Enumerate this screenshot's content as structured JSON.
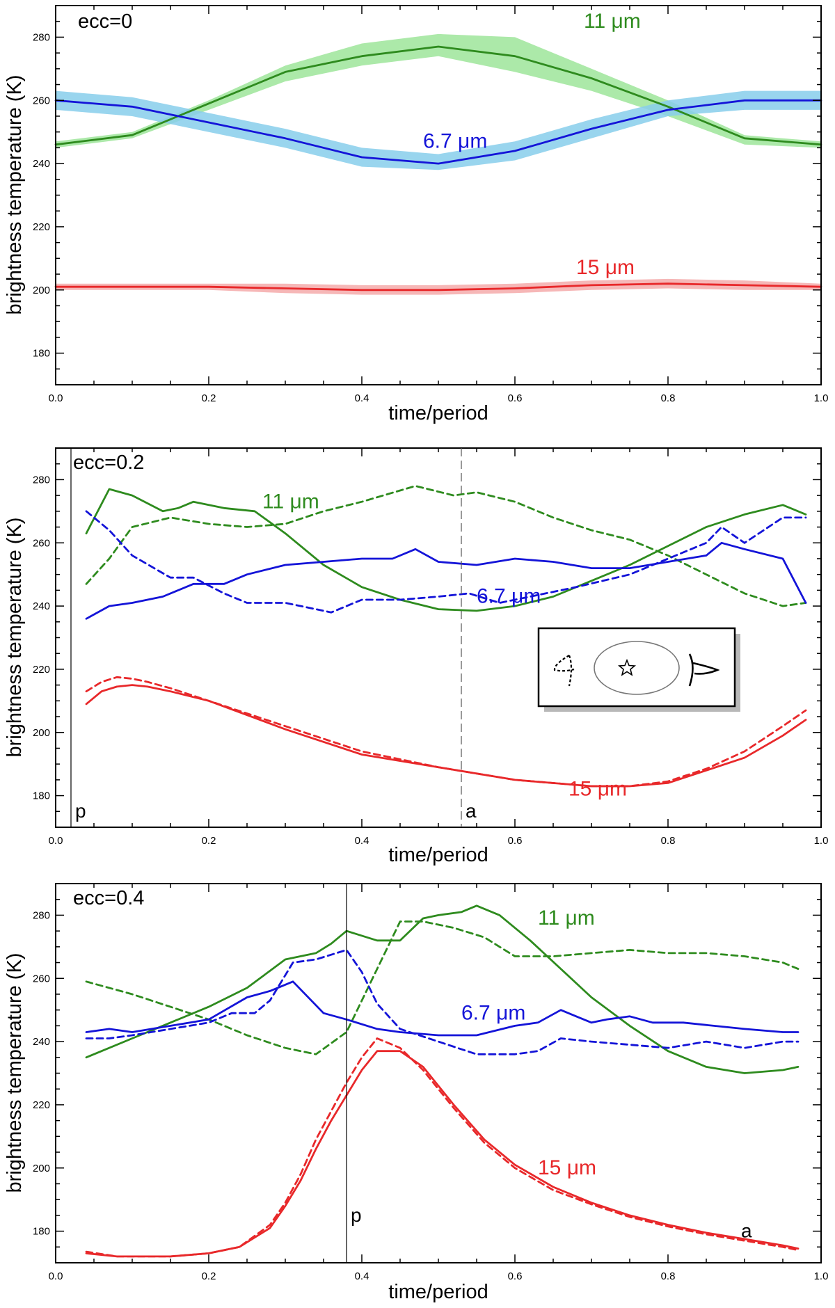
{
  "figure": {
    "xlabel": "time/period",
    "ylabel": "brightness temperature (K)",
    "micron_unit": "μm"
  },
  "colors": {
    "green": "#2e8b1e",
    "green_band": "#9ee59a",
    "blue": "#1414d8",
    "blue_band": "#87ceeb",
    "red": "#e8282a",
    "red_band": "#f5aaaa",
    "axis": "#000000",
    "marker_line_dashed": "#555555"
  },
  "chart_data": [
    {
      "type": "line",
      "title": "ecc=0",
      "xlabel": "time/period",
      "ylabel": "brightness temperature (K)",
      "xlim": [
        0.0,
        1.0
      ],
      "ylim": [
        170,
        290
      ],
      "xticks": [
        "0.0",
        "0.2",
        "0.4",
        "0.6",
        "0.8",
        "1.0"
      ],
      "yticks": [
        "180",
        "200",
        "220",
        "240",
        "260",
        "280"
      ],
      "series": [
        {
          "name": "11 μm",
          "label": "11",
          "color_key": "green",
          "style": "solid",
          "label_x": 0.69,
          "label_y": 283,
          "x": [
            0.0,
            0.1,
            0.2,
            0.3,
            0.4,
            0.5,
            0.6,
            0.7,
            0.8,
            0.9,
            1.0
          ],
          "values": [
            246,
            249,
            259,
            269,
            274,
            277,
            274,
            267,
            258,
            248,
            246
          ],
          "band_lower": [
            245,
            248,
            257,
            266,
            271,
            274,
            269,
            263,
            255,
            246,
            245
          ],
          "band_upper": [
            247,
            250,
            260,
            271,
            278,
            281,
            280,
            270,
            260,
            249,
            247
          ]
        },
        {
          "name": "6.7 μm",
          "label": "6.7",
          "color_key": "blue",
          "style": "solid",
          "label_x": 0.48,
          "label_y": 245,
          "x": [
            0.0,
            0.1,
            0.2,
            0.3,
            0.4,
            0.5,
            0.6,
            0.7,
            0.8,
            0.9,
            1.0
          ],
          "values": [
            260,
            258,
            253,
            248,
            242,
            240,
            244,
            251,
            257,
            260,
            260
          ],
          "band_lower": [
            257,
            255,
            250,
            245,
            239,
            238,
            241,
            248,
            255,
            257,
            257
          ],
          "band_upper": [
            263,
            261,
            256,
            251,
            245,
            243,
            247,
            254,
            260,
            263,
            263
          ]
        },
        {
          "name": "15 μm",
          "label": "15",
          "color_key": "red",
          "style": "solid",
          "label_x": 0.68,
          "label_y": 205,
          "x": [
            0.0,
            0.1,
            0.2,
            0.3,
            0.4,
            0.5,
            0.6,
            0.7,
            0.8,
            0.9,
            1.0
          ],
          "values": [
            201,
            201,
            201,
            200.5,
            200,
            200,
            200.5,
            201.5,
            202,
            201.5,
            201
          ],
          "band_lower": [
            200,
            200,
            200,
            199,
            198.5,
            198.5,
            199,
            200,
            200.5,
            200,
            200
          ],
          "band_upper": [
            202,
            202,
            202,
            202,
            201.5,
            201.5,
            202,
            203,
            203.5,
            203,
            202
          ]
        }
      ],
      "markers": []
    },
    {
      "type": "line",
      "title": "ecc=0.2",
      "xlabel": "time/period",
      "ylabel": "brightness temperature (K)",
      "xlim": [
        0.0,
        1.0
      ],
      "ylim": [
        170,
        290
      ],
      "xticks": [
        "0.0",
        "0.2",
        "0.4",
        "0.6",
        "0.8",
        "1.0"
      ],
      "yticks": [
        "180",
        "200",
        "220",
        "240",
        "260",
        "280"
      ],
      "series": [
        {
          "name": "11 μm",
          "label": "11",
          "color_key": "green",
          "style": "solid",
          "label_x": 0.27,
          "label_y": 271,
          "x": [
            0.04,
            0.07,
            0.1,
            0.14,
            0.16,
            0.18,
            0.2,
            0.22,
            0.26,
            0.3,
            0.35,
            0.4,
            0.45,
            0.5,
            0.55,
            0.6,
            0.65,
            0.7,
            0.75,
            0.8,
            0.85,
            0.9,
            0.95,
            0.98
          ],
          "values": [
            263,
            277,
            275,
            270,
            271,
            273,
            272,
            271,
            270,
            263,
            253,
            246,
            242,
            239,
            238.5,
            240,
            243,
            248,
            253,
            259,
            265,
            269,
            272,
            269
          ]
        },
        {
          "name": "11 μm (dashed)",
          "label": "",
          "color_key": "green",
          "style": "dashed",
          "x": [
            0.04,
            0.07,
            0.1,
            0.15,
            0.2,
            0.25,
            0.3,
            0.35,
            0.4,
            0.47,
            0.52,
            0.55,
            0.6,
            0.65,
            0.7,
            0.75,
            0.8,
            0.85,
            0.9,
            0.95,
            0.98
          ],
          "values": [
            247,
            255,
            265,
            268,
            266,
            265,
            266,
            270,
            273,
            278,
            275,
            276,
            273,
            268,
            264,
            261,
            256,
            250,
            244,
            240,
            241
          ]
        },
        {
          "name": "6.7 μm",
          "label": "6.7",
          "color_key": "blue",
          "style": "solid",
          "label_x": 0.55,
          "label_y": 241,
          "x": [
            0.04,
            0.07,
            0.1,
            0.14,
            0.18,
            0.22,
            0.25,
            0.3,
            0.35,
            0.4,
            0.44,
            0.47,
            0.5,
            0.55,
            0.6,
            0.65,
            0.7,
            0.75,
            0.8,
            0.85,
            0.87,
            0.9,
            0.95,
            0.98
          ],
          "values": [
            236,
            240,
            241,
            243,
            247,
            247,
            250,
            253,
            254,
            255,
            255,
            258,
            254,
            253,
            255,
            254,
            252,
            252,
            254,
            256,
            260,
            258,
            255,
            241
          ]
        },
        {
          "name": "6.7 μm (dashed)",
          "label": "",
          "color_key": "blue",
          "style": "dashed",
          "x": [
            0.04,
            0.07,
            0.1,
            0.15,
            0.18,
            0.22,
            0.25,
            0.3,
            0.36,
            0.4,
            0.45,
            0.5,
            0.54,
            0.58,
            0.62,
            0.68,
            0.75,
            0.8,
            0.85,
            0.87,
            0.9,
            0.95,
            0.98
          ],
          "values": [
            270,
            264,
            256,
            249,
            249,
            244,
            241,
            241,
            238,
            242,
            242,
            243,
            244,
            241,
            243,
            246,
            250,
            255,
            260,
            265,
            260,
            268,
            268
          ]
        },
        {
          "name": "15 μm",
          "label": "15",
          "color_key": "red",
          "style": "solid",
          "label_x": 0.67,
          "label_y": 180,
          "x": [
            0.04,
            0.06,
            0.08,
            0.1,
            0.12,
            0.15,
            0.2,
            0.3,
            0.4,
            0.5,
            0.6,
            0.7,
            0.75,
            0.8,
            0.85,
            0.9,
            0.95,
            0.98
          ],
          "values": [
            209,
            213,
            214.5,
            215,
            214.5,
            213,
            210,
            201,
            193,
            189,
            185,
            183,
            183,
            184,
            188,
            192,
            199,
            204
          ]
        },
        {
          "name": "15 μm (dashed)",
          "label": "",
          "color_key": "red",
          "style": "dashed",
          "x": [
            0.04,
            0.06,
            0.08,
            0.1,
            0.12,
            0.15,
            0.2,
            0.3,
            0.4,
            0.5,
            0.6,
            0.7,
            0.75,
            0.8,
            0.85,
            0.9,
            0.95,
            0.98
          ],
          "values": [
            213,
            216,
            217.5,
            217,
            216,
            214,
            210,
            202,
            194,
            189,
            185,
            183,
            183,
            184.5,
            188.5,
            194,
            202,
            207
          ]
        }
      ],
      "markers": [
        {
          "label": "p",
          "x": 0.02,
          "style": "solid"
        },
        {
          "label": "a",
          "x": 0.53,
          "style": "dashed"
        }
      ],
      "inset": true
    },
    {
      "type": "line",
      "title": "ecc=0.4",
      "xlabel": "time/period",
      "ylabel": "brightness temperature (K)",
      "xlim": [
        0.0,
        1.0
      ],
      "ylim": [
        170,
        290
      ],
      "xticks": [
        "0.0",
        "0.2",
        "0.4",
        "0.6",
        "0.8",
        "1.0"
      ],
      "yticks": [
        "180",
        "200",
        "220",
        "240",
        "260",
        "280"
      ],
      "series": [
        {
          "name": "11 μm",
          "label": "11",
          "color_key": "green",
          "style": "solid",
          "label_x": 0.63,
          "label_y": 277,
          "x": [
            0.04,
            0.1,
            0.15,
            0.2,
            0.25,
            0.3,
            0.34,
            0.36,
            0.38,
            0.42,
            0.45,
            0.48,
            0.5,
            0.53,
            0.55,
            0.58,
            0.62,
            0.66,
            0.7,
            0.75,
            0.8,
            0.85,
            0.9,
            0.95,
            0.97
          ],
          "values": [
            235,
            241,
            246,
            251,
            257,
            266,
            268,
            271,
            275,
            272,
            272,
            279,
            280,
            281,
            283,
            280,
            272,
            263,
            254,
            245,
            237,
            232,
            230,
            231,
            232
          ]
        },
        {
          "name": "11 μm (dashed)",
          "label": "",
          "color_key": "green",
          "style": "dashed",
          "x": [
            0.04,
            0.1,
            0.15,
            0.2,
            0.25,
            0.3,
            0.34,
            0.38,
            0.42,
            0.45,
            0.48,
            0.52,
            0.56,
            0.6,
            0.65,
            0.7,
            0.75,
            0.8,
            0.85,
            0.9,
            0.95,
            0.97
          ],
          "values": [
            259,
            255,
            251,
            247,
            242,
            238,
            236,
            243,
            263,
            278,
            278,
            276,
            273,
            267,
            267,
            268,
            269,
            268,
            268,
            267,
            265,
            263
          ]
        },
        {
          "name": "6.7 μm",
          "label": "6.7",
          "color_key": "blue",
          "style": "solid",
          "label_x": 0.53,
          "label_y": 247,
          "x": [
            0.04,
            0.07,
            0.1,
            0.15,
            0.2,
            0.25,
            0.28,
            0.31,
            0.35,
            0.38,
            0.42,
            0.45,
            0.5,
            0.55,
            0.6,
            0.63,
            0.66,
            0.68,
            0.7,
            0.72,
            0.75,
            0.78,
            0.82,
            0.86,
            0.9,
            0.95,
            0.97
          ],
          "values": [
            243,
            244,
            243,
            245,
            247,
            254,
            256,
            259,
            249,
            247,
            244,
            243,
            242,
            242,
            245,
            246,
            250,
            248,
            246,
            247,
            248,
            246,
            246,
            245,
            244,
            243,
            243
          ]
        },
        {
          "name": "6.7 μm (dashed)",
          "label": "",
          "color_key": "blue",
          "style": "dashed",
          "x": [
            0.04,
            0.07,
            0.1,
            0.15,
            0.2,
            0.23,
            0.26,
            0.28,
            0.31,
            0.34,
            0.38,
            0.4,
            0.42,
            0.45,
            0.5,
            0.55,
            0.6,
            0.63,
            0.66,
            0.7,
            0.75,
            0.8,
            0.85,
            0.9,
            0.95,
            0.97
          ],
          "values": [
            241,
            241,
            242,
            244,
            246,
            249,
            249,
            253,
            265,
            266,
            269,
            262,
            252,
            244,
            240,
            236,
            236,
            237,
            241,
            240,
            239,
            238,
            240,
            238,
            240,
            240
          ]
        },
        {
          "name": "15 μm",
          "label": "15",
          "color_key": "red",
          "style": "solid",
          "label_x": 0.63,
          "label_y": 198,
          "x": [
            0.04,
            0.08,
            0.15,
            0.2,
            0.24,
            0.28,
            0.3,
            0.32,
            0.34,
            0.36,
            0.38,
            0.4,
            0.42,
            0.45,
            0.48,
            0.52,
            0.56,
            0.6,
            0.65,
            0.7,
            0.75,
            0.8,
            0.85,
            0.9,
            0.95,
            0.97
          ],
          "values": [
            173,
            172,
            172,
            173,
            175,
            181,
            188,
            196,
            206,
            215,
            223,
            231,
            237,
            237,
            232,
            220,
            209,
            201,
            194,
            189,
            185,
            182,
            179.5,
            177.5,
            175.5,
            174.5
          ]
        },
        {
          "name": "15 μm (dashed)",
          "label": "",
          "color_key": "red",
          "style": "dashed",
          "x": [
            0.04,
            0.08,
            0.15,
            0.2,
            0.24,
            0.28,
            0.3,
            0.32,
            0.34,
            0.36,
            0.38,
            0.4,
            0.42,
            0.45,
            0.48,
            0.52,
            0.56,
            0.6,
            0.65,
            0.7,
            0.75,
            0.8,
            0.85,
            0.9,
            0.95,
            0.97
          ],
          "values": [
            173.5,
            172,
            172,
            173,
            175,
            182,
            189,
            198,
            209,
            218,
            227,
            235,
            241,
            238,
            231,
            219,
            208,
            200,
            193,
            188.5,
            184.5,
            181.5,
            179,
            177,
            175,
            174
          ]
        }
      ],
      "markers": [
        {
          "label": "p",
          "x": 0.38,
          "style": "solid"
        },
        {
          "label": "a",
          "x": 0.89,
          "style": "none"
        }
      ]
    }
  ]
}
